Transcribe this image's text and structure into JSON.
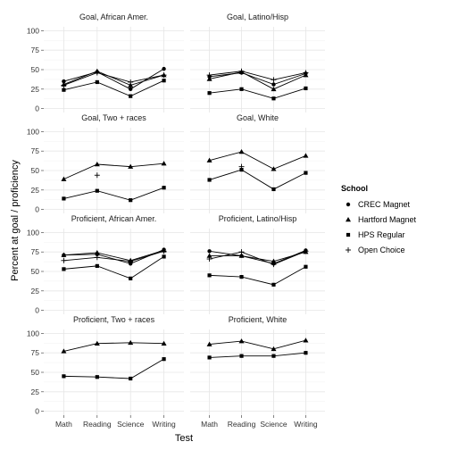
{
  "chart_data": {
    "type": "line",
    "xlabel": "Test",
    "ylabel": "Percent at goal / proficiency",
    "categories": [
      "Math",
      "Reading",
      "Science",
      "Writing"
    ],
    "ylim": [
      0,
      100
    ],
    "yticks": [
      0,
      25,
      50,
      75,
      100
    ],
    "grid": true,
    "legend": {
      "title": "School",
      "placement": "right",
      "entries": [
        {
          "name": "CREC Magnet",
          "shape": "circle"
        },
        {
          "name": "Hartford Magnet",
          "shape": "triangle"
        },
        {
          "name": "HPS Regular",
          "shape": "square"
        },
        {
          "name": "Open Choice",
          "shape": "plus"
        }
      ]
    },
    "panels": [
      {
        "title": "Goal, African Amer.",
        "series": [
          {
            "name": "CREC Magnet",
            "values": [
              35,
              47,
              25,
              51
            ]
          },
          {
            "name": "Hartford Magnet",
            "values": [
              31,
              48,
              30,
              43
            ]
          },
          {
            "name": "HPS Regular",
            "values": [
              24,
              34,
              16,
              36
            ]
          },
          {
            "name": "Open Choice",
            "values": [
              30,
              46,
              34,
              43
            ]
          }
        ]
      },
      {
        "title": "Goal, Latino/Hisp",
        "series": [
          {
            "name": "CREC Magnet",
            "values": [
              41,
              46,
              31,
              45
            ]
          },
          {
            "name": "Hartford Magnet",
            "values": [
              38,
              47,
              25,
              43
            ]
          },
          {
            "name": "HPS Regular",
            "values": [
              20,
              25,
              13,
              26
            ]
          },
          {
            "name": "Open Choice",
            "values": [
              43,
              48,
              37,
              46
            ]
          }
        ]
      },
      {
        "title": "Goal, Two + races",
        "series": [
          {
            "name": "Hartford Magnet",
            "values": [
              39,
              58,
              55,
              59
            ]
          },
          {
            "name": "HPS Regular",
            "values": [
              14,
              24,
              12,
              28
            ]
          },
          {
            "name": "Open Choice",
            "values": [
              null,
              44,
              null,
              null
            ]
          }
        ]
      },
      {
        "title": "Goal, White",
        "series": [
          {
            "name": "Hartford Magnet",
            "values": [
              63,
              74,
              52,
              69
            ]
          },
          {
            "name": "HPS Regular",
            "values": [
              38,
              51,
              26,
              47
            ]
          },
          {
            "name": "Open Choice",
            "values": [
              null,
              55,
              null,
              null
            ]
          }
        ]
      },
      {
        "title": "Proficient, African Amer.",
        "series": [
          {
            "name": "CREC Magnet",
            "values": [
              71,
              72,
              60,
              78
            ]
          },
          {
            "name": "Hartford Magnet",
            "values": [
              71,
              74,
              64,
              77
            ]
          },
          {
            "name": "HPS Regular",
            "values": [
              53,
              57,
              41,
              69
            ]
          },
          {
            "name": "Open Choice",
            "values": [
              64,
              68,
              63,
              76
            ]
          }
        ]
      },
      {
        "title": "Proficient, Latino/Hisp",
        "series": [
          {
            "name": "CREC Magnet",
            "values": [
              76,
              70,
              60,
              77
            ]
          },
          {
            "name": "Hartford Magnet",
            "values": [
              70,
              70,
              63,
              75
            ]
          },
          {
            "name": "HPS Regular",
            "values": [
              45,
              43,
              33,
              56
            ]
          },
          {
            "name": "Open Choice",
            "values": [
              66,
              75,
              59,
              76
            ]
          }
        ]
      },
      {
        "title": "Proficient, Two + races",
        "series": [
          {
            "name": "Hartford Magnet",
            "values": [
              77,
              87,
              88,
              87
            ]
          },
          {
            "name": "HPS Regular",
            "values": [
              45,
              44,
              42,
              67
            ]
          }
        ]
      },
      {
        "title": "Proficient, White",
        "series": [
          {
            "name": "Hartford Magnet",
            "values": [
              86,
              90,
              80,
              91
            ]
          },
          {
            "name": "HPS Regular",
            "values": [
              69,
              71,
              71,
              75
            ]
          }
        ]
      }
    ]
  }
}
